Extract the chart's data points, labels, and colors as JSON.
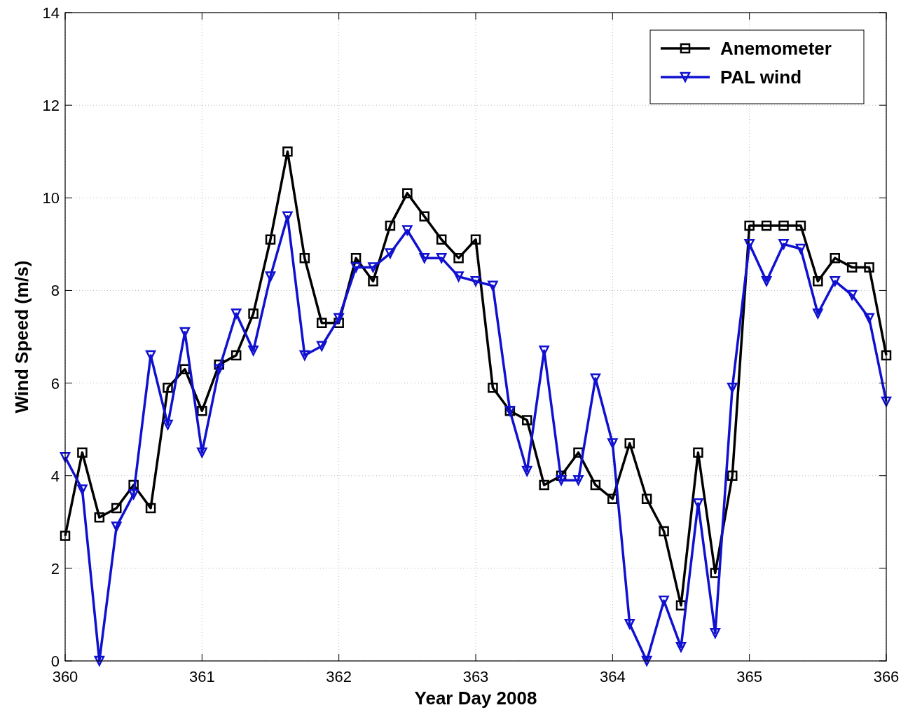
{
  "chart_data": {
    "type": "line",
    "xlabel": "Year Day 2008",
    "ylabel": "Wind Speed (m/s)",
    "x": [
      360,
      360.125,
      360.25,
      360.375,
      360.5,
      360.625,
      360.75,
      360.875,
      361,
      361.125,
      361.25,
      361.375,
      361.5,
      361.625,
      361.75,
      361.875,
      362,
      362.125,
      362.25,
      362.375,
      362.5,
      362.625,
      362.75,
      362.875,
      363,
      363.125,
      363.25,
      363.375,
      363.5,
      363.625,
      363.75,
      363.875,
      364,
      364.125,
      364.25,
      364.375,
      364.5,
      364.625,
      364.75,
      364.875,
      365,
      365.125,
      365.25,
      365.375,
      365.5,
      365.625,
      365.75,
      365.875,
      366
    ],
    "series": [
      {
        "name": "Anemometer",
        "color": "#000000",
        "marker": "square",
        "values": [
          2.7,
          4.5,
          3.1,
          3.3,
          3.8,
          3.3,
          5.9,
          6.3,
          5.4,
          6.4,
          6.6,
          7.5,
          9.1,
          11.0,
          8.7,
          7.3,
          7.3,
          8.7,
          8.2,
          9.4,
          10.1,
          9.6,
          9.1,
          8.7,
          9.1,
          5.9,
          5.4,
          5.2,
          3.8,
          4.0,
          4.5,
          3.8,
          3.5,
          4.7,
          3.5,
          2.8,
          1.2,
          4.5,
          1.9,
          4.0,
          9.4,
          9.4,
          9.4,
          9.4,
          8.2,
          8.7,
          8.5,
          8.5,
          6.6
        ]
      },
      {
        "name": "PAL wind",
        "color": "#1010d0",
        "marker": "triangle",
        "values": [
          4.4,
          3.7,
          0,
          2.9,
          3.6,
          6.6,
          5.1,
          7.1,
          4.5,
          6.3,
          7.5,
          6.7,
          8.3,
          9.6,
          6.6,
          6.8,
          7.4,
          8.5,
          8.5,
          8.8,
          9.3,
          8.7,
          8.7,
          8.3,
          8.2,
          8.1,
          5.4,
          4.1,
          6.7,
          3.9,
          3.9,
          6.1,
          4.7,
          0.8,
          0,
          1.3,
          0.3,
          3.4,
          0.6,
          5.9,
          9.0,
          8.2,
          9.0,
          8.9,
          7.5,
          8.2,
          7.9,
          7.4,
          5.6
        ]
      }
    ],
    "xlim": [
      360,
      366
    ],
    "xticks": [
      360,
      361,
      362,
      363,
      364,
      365,
      366
    ],
    "ylim": [
      0,
      14
    ],
    "yticks": [
      0,
      2,
      4,
      6,
      8,
      10,
      12,
      14
    ],
    "grid": true,
    "legend": "top right",
    "line_style": "solid"
  }
}
